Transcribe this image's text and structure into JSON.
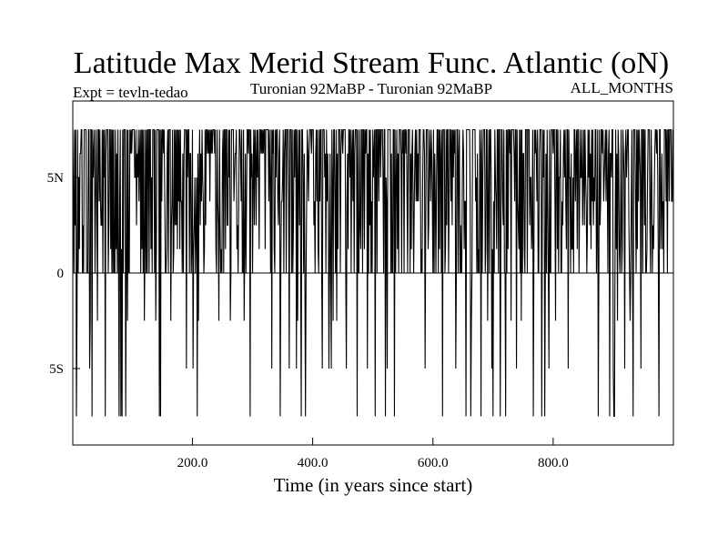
{
  "chart_data": {
    "type": "line",
    "title": "Latitude Max Merid Stream Func. Atlantic (oN)",
    "subtitle_left": "Expt = tevln-tedao",
    "subtitle_center": "Turonian  92MaBP - Turonian  92MaBP",
    "subtitle_right": "ALL_MONTHS",
    "xlabel": "Time (in years since start)",
    "ylabel": "",
    "xlim": [
      1,
      1000
    ],
    "ylim": [
      -9,
      9
    ],
    "x_ticks": [
      {
        "value": 200,
        "label": "200.0"
      },
      {
        "value": 400,
        "label": "400.0"
      },
      {
        "value": 600,
        "label": "600.0"
      },
      {
        "value": 800,
        "label": "800.0"
      }
    ],
    "y_ticks": [
      {
        "value": 5,
        "label": "5N"
      },
      {
        "value": 0,
        "label": "0"
      },
      {
        "value": -5,
        "label": "5S"
      }
    ],
    "levels": [
      7.5,
      6.25,
      5.0,
      3.75,
      2.5,
      1.25,
      0,
      -2.5,
      -5.0,
      -7.5
    ],
    "series": [
      {
        "name": "latitude_max_merid_stream_func",
        "seed": 92,
        "description": "annual values, years 1-1000, oscillating mostly between 0 and 7.5N with occasional drops to 2.5S-7.5S"
      }
    ]
  }
}
